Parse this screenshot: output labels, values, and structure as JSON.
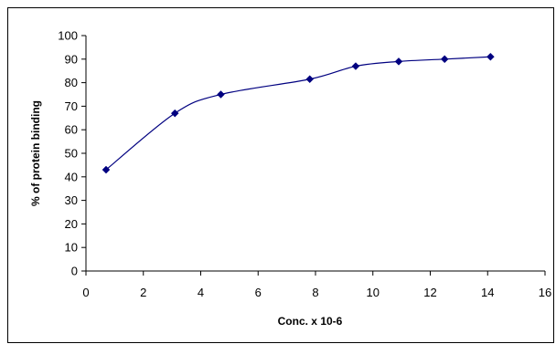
{
  "chart_data": {
    "type": "line",
    "title": "",
    "xlabel": "Conc. x 10-6",
    "ylabel": "% of protein binding",
    "xlim": [
      0,
      16
    ],
    "ylim": [
      0,
      100
    ],
    "xticks": [
      0,
      2,
      4,
      6,
      8,
      10,
      12,
      14,
      16
    ],
    "yticks": [
      0,
      10,
      20,
      30,
      40,
      50,
      60,
      70,
      80,
      90,
      100
    ],
    "grid": false,
    "legend": "none",
    "line_color": "#000080",
    "marker_color": "#000080",
    "series": [
      {
        "x": [
          0.7,
          3.1,
          4.7,
          7.8,
          9.4,
          10.9,
          12.5,
          14.1
        ],
        "values": [
          43,
          67,
          75,
          81.5,
          87,
          89,
          90,
          91
        ]
      }
    ]
  }
}
